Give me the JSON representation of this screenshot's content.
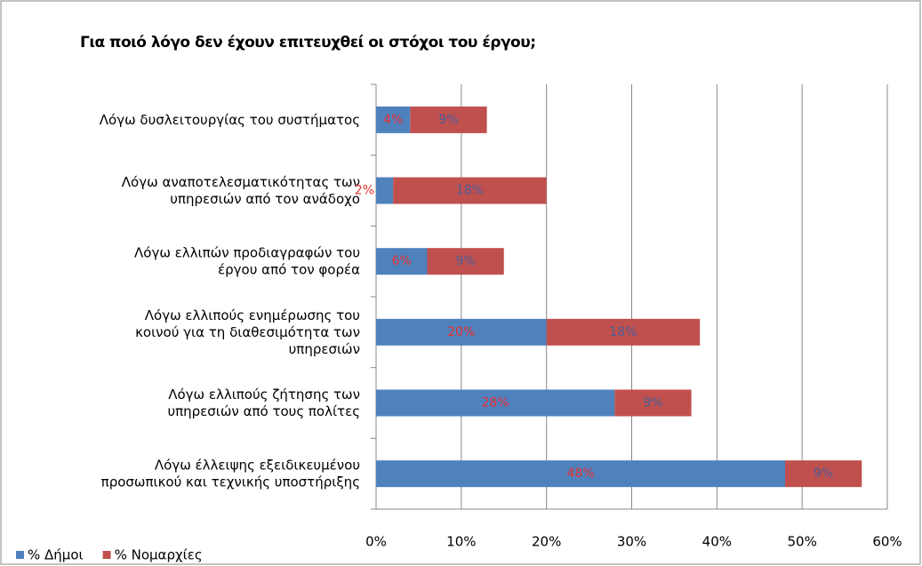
{
  "chart_data": {
    "type": "stacked_barh",
    "title": "Για ποιό λόγο δεν έχουν επιτευχθεί οι στόχοι του έργου;",
    "categories": [
      "Λόγω δυσλειτουργίας του συστήματος",
      "Λόγω αναποτελεσματικότητας των\nυπηρεσιών από τον ανάδοχο",
      "Λόγω ελλιπών  προδιαγραφών του\nέργου από τον φορέα",
      "Λόγω ελλιπούς ενημέρωσης του\nκοινού για τη διαθεσιμότητα των\nυπηρεσιών",
      "Λόγω ελλιπούς ζήτησης των\nυπηρεσιών από τους πολίτες",
      "Λόγω έλλειψης εξειδικευμένου\nπροσωπικού και τεχνικής υποστήριξης"
    ],
    "series": [
      {
        "name": "% Δήμοι",
        "color": "#4f81bd",
        "values": [
          4,
          2,
          6,
          20,
          28,
          48
        ],
        "value_labels": [
          "4%",
          "2%",
          "6%",
          "20%",
          "28%",
          "48%"
        ]
      },
      {
        "name": "% Νομαρχίες",
        "color": "#c0504d",
        "values": [
          9,
          18,
          9,
          18,
          9,
          9
        ],
        "value_labels": [
          "9%",
          "18%",
          "9%",
          "18%",
          "9%",
          "9%"
        ]
      }
    ],
    "xlim": [
      0,
      60
    ],
    "xticks": [
      {
        "value": 0,
        "label": "0%"
      },
      {
        "value": 10,
        "label": "10%"
      },
      {
        "value": 20,
        "label": "20%"
      },
      {
        "value": 30,
        "label": "30%"
      },
      {
        "value": 40,
        "label": "40%"
      },
      {
        "value": 50,
        "label": "50%"
      },
      {
        "value": 60,
        "label": "60%"
      }
    ],
    "grid": true,
    "legend": "bottom-left"
  }
}
